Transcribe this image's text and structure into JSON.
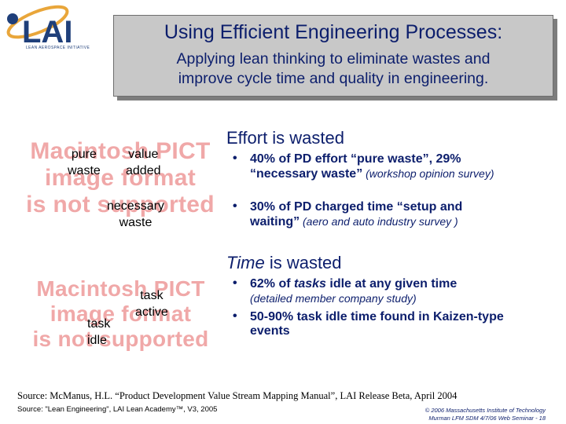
{
  "logo": {
    "text": "LAI",
    "tagline": "LEAN AEROSPACE INITIATIVE"
  },
  "title": {
    "main": "Using Efficient Engineering Processes:",
    "sub_line1": "Applying lean thinking to eliminate wastes and",
    "sub_line2": "improve cycle time and quality in engineering."
  },
  "image1": {
    "placeholder": [
      "Macintosh PICT",
      "image format",
      "is not supported"
    ],
    "labels": {
      "pure_waste": "pure\nwaste",
      "value_added": "value\nadded",
      "necessary_waste": "necessary\nwaste"
    }
  },
  "image2": {
    "placeholder": [
      "Macintosh PICT",
      "image format",
      "is not supported"
    ],
    "labels": {
      "task_active": "task\nactive",
      "task_idle": "task\nidle"
    }
  },
  "effort": {
    "heading": "Effort is wasted",
    "bullets": [
      {
        "bold": "40% of PD effort “pure waste”, 29% “necessary waste”",
        "note": " (workshop opinion survey)"
      },
      {
        "bold": "30% of PD charged time “setup and waiting”",
        "note": " (aero and auto industry survey )"
      }
    ]
  },
  "time": {
    "heading_italic": "Time",
    "heading_rest": " is wasted",
    "bullets": [
      {
        "bold_pre": "62% of ",
        "bold_italic": "tasks",
        "bold_post": " idle at any given time",
        "note": "(detailed member company study)"
      },
      {
        "bold": "50-90% task idle time found in Kaizen-type events"
      }
    ]
  },
  "source1": "Source: McManus, H.L. “Product Development Value Stream Mapping Manual”, LAI Release Beta, April 2004",
  "source2": "Source: \"Lean Engineering\", LAI Lean Academy™, V3, 2005",
  "footer": {
    "line1": "© 2006 Massachusetts Institute of Technology",
    "line2": "Murman LFM SDM 4/7/06 Web Seminar - 18"
  },
  "colors": {
    "navy": "#0c1e6c",
    "title_box": "#c8c8c8",
    "pict_red": "#f0a8a8"
  }
}
